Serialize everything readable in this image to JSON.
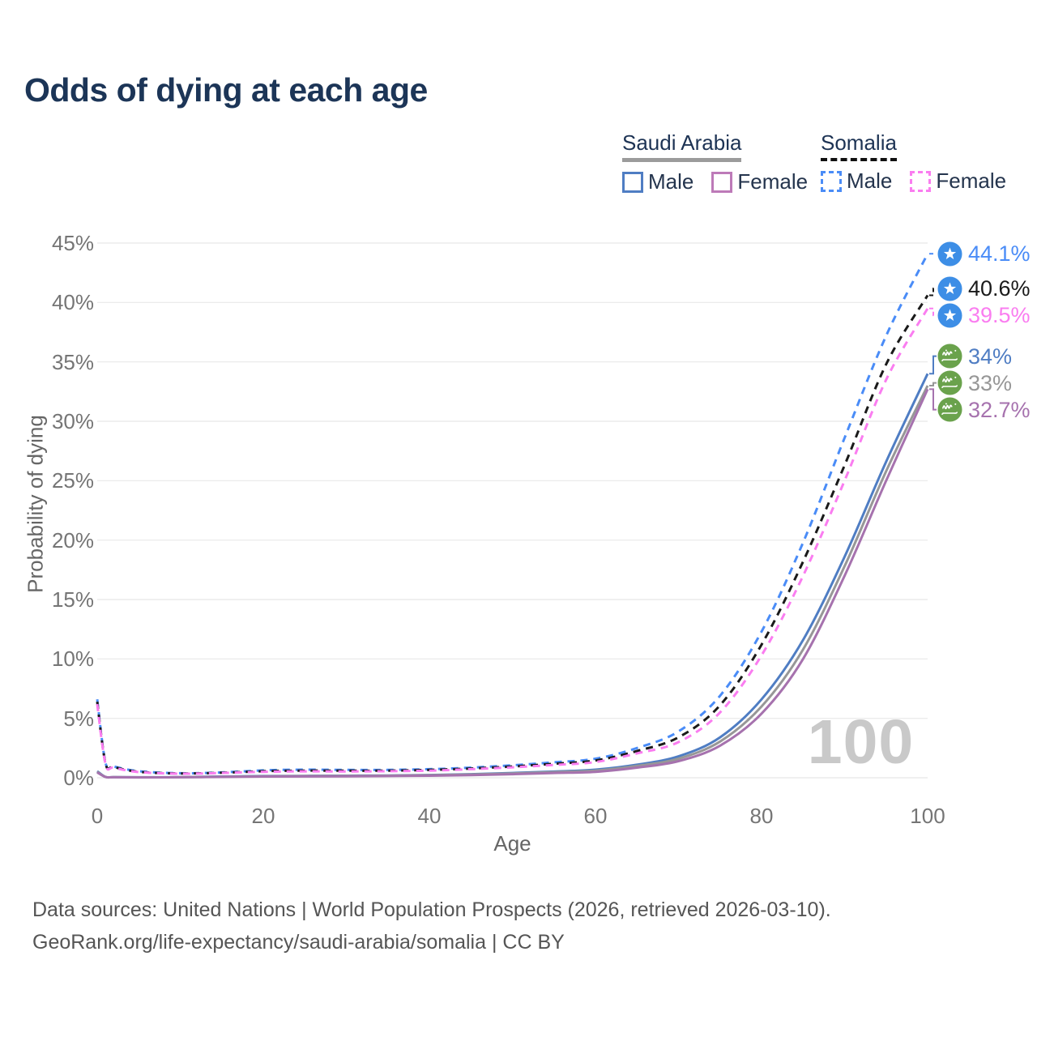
{
  "title": "Odds of dying at each age",
  "legend": {
    "groups": [
      {
        "name": "Saudi Arabia",
        "line_style": "solid",
        "underline_color": "#9b9b9b",
        "items": [
          {
            "label": "Male",
            "color": "#4f7dc3"
          },
          {
            "label": "Female",
            "color": "#bd7ab8"
          }
        ]
      },
      {
        "name": "Somalia",
        "line_style": "dashed",
        "underline_color": "#111111",
        "items": [
          {
            "label": "Male",
            "color": "#4a8cf7"
          },
          {
            "label": "Female",
            "color": "#fa7df0"
          }
        ]
      }
    ]
  },
  "chart_data": {
    "type": "line",
    "title": "Odds of dying at each age",
    "xlabel": "Age",
    "ylabel": "Probability of dying",
    "xlim": [
      0,
      100
    ],
    "ylim": [
      0,
      45
    ],
    "x_ticks": [
      0,
      20,
      40,
      60,
      80,
      100
    ],
    "y_ticks": [
      0,
      5,
      10,
      15,
      20,
      25,
      30,
      35,
      40,
      45
    ],
    "y_tick_suffix": "%",
    "grid": "horizontal",
    "legend_position": "top-right",
    "x": [
      0,
      1,
      2,
      5,
      10,
      15,
      20,
      25,
      30,
      35,
      40,
      45,
      50,
      55,
      60,
      65,
      70,
      75,
      80,
      85,
      90,
      95,
      100
    ],
    "series": [
      {
        "id": "somalia-male",
        "name": "Somalia Male",
        "country": "Somalia",
        "sex": "Male",
        "color": "#4a8cf7",
        "dash": true,
        "flag": "somalia",
        "end_label": "44.1%",
        "values": [
          6.6,
          1.25,
          0.95,
          0.55,
          0.38,
          0.45,
          0.62,
          0.68,
          0.66,
          0.66,
          0.72,
          0.85,
          1.05,
          1.3,
          1.6,
          2.5,
          3.9,
          6.9,
          12.3,
          19.8,
          28.6,
          37.2,
          44.1
        ]
      },
      {
        "id": "somalia-both",
        "name": "Somalia (both sexes)",
        "country": "Somalia",
        "sex": "Both",
        "color": "#1a1a1a",
        "dash": true,
        "flag": "somalia",
        "end_label": "40.6%",
        "values": [
          6.4,
          1.2,
          0.9,
          0.5,
          0.36,
          0.42,
          0.55,
          0.6,
          0.59,
          0.6,
          0.66,
          0.78,
          0.95,
          1.18,
          1.45,
          2.25,
          3.4,
          6.1,
          11.2,
          18.2,
          26.3,
          34.8,
          40.6
        ]
      },
      {
        "id": "somalia-female",
        "name": "Somalia Female",
        "country": "Somalia",
        "sex": "Female",
        "color": "#fa7df0",
        "dash": true,
        "flag": "somalia",
        "end_label": "39.5%",
        "values": [
          6.2,
          1.15,
          0.85,
          0.48,
          0.34,
          0.4,
          0.5,
          0.54,
          0.53,
          0.55,
          0.6,
          0.72,
          0.88,
          1.08,
          1.32,
          2.05,
          3.0,
          5.5,
          10.3,
          17.0,
          25.0,
          33.5,
          39.5
        ]
      },
      {
        "id": "saudi-arabia-male",
        "name": "Saudi Arabia Male",
        "country": "Saudi Arabia",
        "sex": "Male",
        "color": "#4f7dc3",
        "dash": false,
        "flag": "saudi-arabia",
        "end_label": "34%",
        "values": [
          0.55,
          0.07,
          0.05,
          0.04,
          0.05,
          0.1,
          0.14,
          0.16,
          0.17,
          0.19,
          0.23,
          0.3,
          0.4,
          0.52,
          0.68,
          1.1,
          1.8,
          3.4,
          6.6,
          11.6,
          18.6,
          26.6,
          34.0
        ]
      },
      {
        "id": "saudi-arabia-both",
        "name": "Saudi Arabia (both sexes)",
        "country": "Saudi Arabia",
        "sex": "Both",
        "color": "#979797",
        "dash": false,
        "flag": "saudi-arabia",
        "end_label": "33%",
        "values": [
          0.5,
          0.065,
          0.045,
          0.035,
          0.045,
          0.09,
          0.12,
          0.14,
          0.15,
          0.17,
          0.21,
          0.27,
          0.36,
          0.47,
          0.6,
          1.0,
          1.6,
          3.05,
          6.0,
          10.8,
          17.8,
          25.8,
          33.0
        ]
      },
      {
        "id": "saudi-arabia-female",
        "name": "Saudi Arabia Female",
        "country": "Saudi Arabia",
        "sex": "Female",
        "color": "#a672ae",
        "dash": false,
        "flag": "saudi-arabia",
        "end_label": "32.7%",
        "values": [
          0.45,
          0.06,
          0.04,
          0.03,
          0.04,
          0.07,
          0.1,
          0.11,
          0.12,
          0.14,
          0.17,
          0.22,
          0.3,
          0.4,
          0.5,
          0.85,
          1.4,
          2.7,
          5.4,
          10.0,
          17.0,
          25.0,
          32.7
        ]
      }
    ]
  },
  "icons": {
    "somalia_flag": "blue-circle-white-star",
    "saudi_arabia_flag": "green-circle-shahada-and-sword"
  },
  "flag_colors": {
    "somalia": "#3d8ee6",
    "saudi_arabia": "#6aa24c"
  },
  "watermark": "100",
  "footer": {
    "line1": "Data sources: United Nations | World Population Prospects (2026, retrieved 2026-03-10).",
    "line2": "GeoRank.org/life-expectancy/saudi-arabia/somalia | CC BY"
  }
}
